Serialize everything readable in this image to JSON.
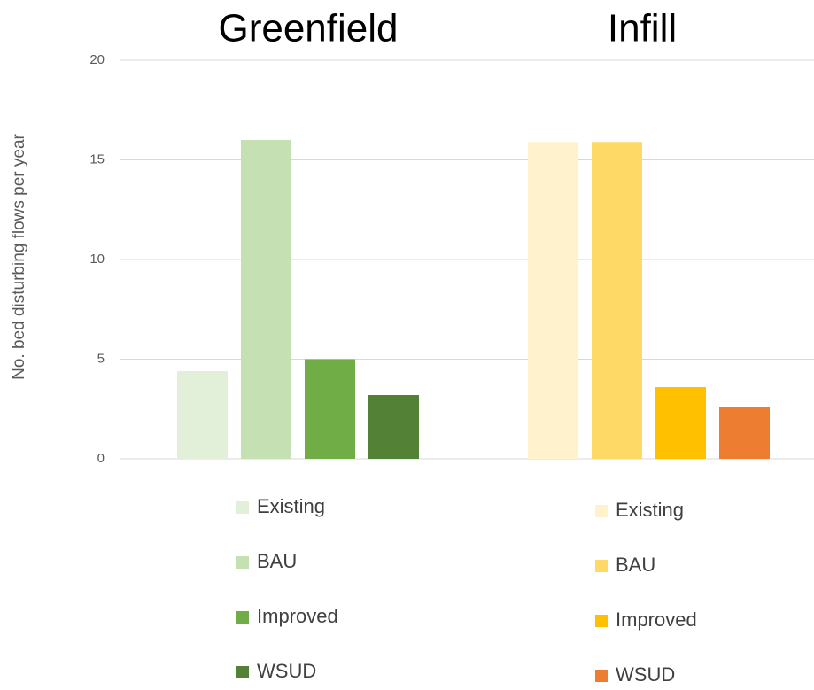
{
  "chart_data": {
    "type": "bar",
    "ylabel": "No. bed disturbing flows per year",
    "ylim": [
      0,
      20
    ],
    "yticks": [
      0,
      5,
      10,
      15,
      20
    ],
    "grid": true,
    "groups": [
      {
        "title": "Greenfield",
        "series": [
          {
            "name": "Existing",
            "color": "#e2efd9",
            "values": [
              4.4
            ]
          },
          {
            "name": "BAU",
            "color": "#c5e0b3",
            "values": [
              16.0
            ]
          },
          {
            "name": "Improved",
            "color": "#70ad47",
            "values": [
              5.0
            ]
          },
          {
            "name": "WSUD",
            "color": "#538135",
            "values": [
              3.2
            ]
          }
        ]
      },
      {
        "title": "Infill",
        "series": [
          {
            "name": "Existing",
            "color": "#fff2cc",
            "values": [
              15.9
            ]
          },
          {
            "name": "BAU",
            "color": "#ffd966",
            "values": [
              15.9
            ]
          },
          {
            "name": "Improved",
            "color": "#ffc000",
            "values": [
              3.6
            ]
          },
          {
            "name": "WSUD",
            "color": "#ed7d31",
            "values": [
              2.6
            ]
          }
        ]
      }
    ]
  }
}
